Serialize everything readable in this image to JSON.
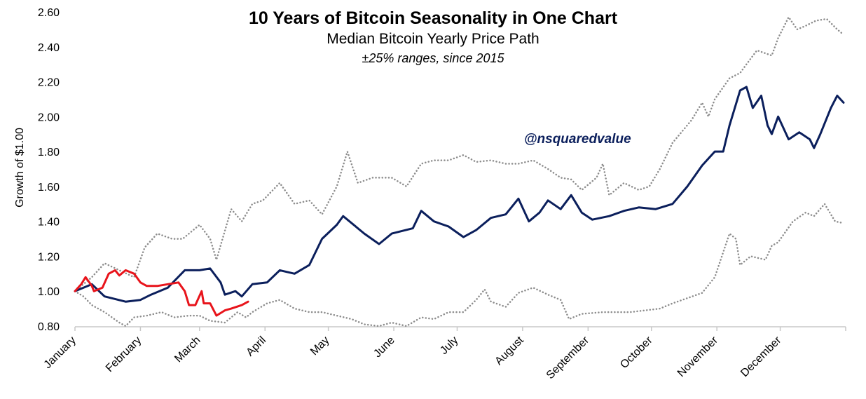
{
  "chart_data": {
    "type": "line",
    "title": "10 Years of Bitcoin Seasonality in One Chart",
    "subtitle": "Median Bitcoin Yearly Price Path",
    "subtitle2": "±25% ranges, since 2015",
    "annotation": "@nsquaredvalue",
    "ylabel": "Growth of $1.00",
    "xlabel": "",
    "ylim": [
      0.8,
      2.6
    ],
    "yticks": [
      "0.80",
      "1.00",
      "1.20",
      "1.40",
      "1.60",
      "1.80",
      "2.00",
      "2.20",
      "2.40",
      "2.60"
    ],
    "xticks": [
      "January",
      "February",
      "March",
      "April",
      "May",
      "June",
      "July",
      "August",
      "September",
      "October",
      "November",
      "December"
    ],
    "grid": false,
    "legend": "none",
    "series": [
      {
        "style": "solid",
        "color": "#0b1f5c",
        "points": [
          [
            "01-01",
            1.0
          ],
          [
            "01-09",
            1.04
          ],
          [
            "01-15",
            0.97
          ],
          [
            "01-25",
            0.94
          ],
          [
            "02-01",
            0.95
          ],
          [
            "02-06",
            0.98
          ],
          [
            "02-14",
            1.02
          ],
          [
            "02-22",
            1.12
          ],
          [
            "03-01",
            1.12
          ],
          [
            "03-06",
            1.13
          ],
          [
            "03-11",
            1.05
          ],
          [
            "03-13",
            0.98
          ],
          [
            "03-18",
            1.0
          ],
          [
            "03-21",
            0.97
          ],
          [
            "03-26",
            1.04
          ],
          [
            "04-02",
            1.05
          ],
          [
            "04-08",
            1.12
          ],
          [
            "04-15",
            1.1
          ],
          [
            "04-22",
            1.15
          ],
          [
            "04-28",
            1.3
          ],
          [
            "05-05",
            1.38
          ],
          [
            "05-08",
            1.43
          ],
          [
            "05-18",
            1.33
          ],
          [
            "05-25",
            1.27
          ],
          [
            "05-31",
            1.33
          ],
          [
            "06-10",
            1.36
          ],
          [
            "06-14",
            1.46
          ],
          [
            "06-20",
            1.4
          ],
          [
            "06-27",
            1.37
          ],
          [
            "07-04",
            1.31
          ],
          [
            "07-10",
            1.35
          ],
          [
            "07-17",
            1.42
          ],
          [
            "07-24",
            1.44
          ],
          [
            "07-30",
            1.53
          ],
          [
            "08-04",
            1.4
          ],
          [
            "08-09",
            1.45
          ],
          [
            "08-13",
            1.52
          ],
          [
            "08-19",
            1.47
          ],
          [
            "08-24",
            1.55
          ],
          [
            "08-29",
            1.45
          ],
          [
            "09-03",
            1.41
          ],
          [
            "09-11",
            1.43
          ],
          [
            "09-18",
            1.46
          ],
          [
            "09-25",
            1.48
          ],
          [
            "10-03",
            1.47
          ],
          [
            "10-11",
            1.5
          ],
          [
            "10-18",
            1.6
          ],
          [
            "10-25",
            1.72
          ],
          [
            "10-31",
            1.8
          ],
          [
            "11-04",
            1.8
          ],
          [
            "11-07",
            1.95
          ],
          [
            "11-12",
            2.15
          ],
          [
            "11-15",
            2.17
          ],
          [
            "11-18",
            2.05
          ],
          [
            "11-22",
            2.12
          ],
          [
            "11-25",
            1.95
          ],
          [
            "11-27",
            1.9
          ],
          [
            "11-30",
            2.0
          ],
          [
            "12-05",
            1.87
          ],
          [
            "12-10",
            1.91
          ],
          [
            "12-15",
            1.87
          ],
          [
            "12-17",
            1.82
          ],
          [
            "12-20",
            1.9
          ],
          [
            "12-25",
            2.05
          ],
          [
            "12-28",
            2.12
          ],
          [
            "12-31",
            2.08
          ]
        ]
      },
      {
        "style": "solid",
        "color": "#e8141b",
        "points": [
          [
            "01-01",
            1.0
          ],
          [
            "01-04",
            1.04
          ],
          [
            "01-06",
            1.08
          ],
          [
            "01-09",
            1.03
          ],
          [
            "01-10",
            1.0
          ],
          [
            "01-14",
            1.02
          ],
          [
            "01-17",
            1.1
          ],
          [
            "01-20",
            1.12
          ],
          [
            "01-22",
            1.09
          ],
          [
            "01-25",
            1.12
          ],
          [
            "01-29",
            1.1
          ],
          [
            "02-01",
            1.05
          ],
          [
            "02-04",
            1.03
          ],
          [
            "02-09",
            1.03
          ],
          [
            "02-14",
            1.04
          ],
          [
            "02-19",
            1.05
          ],
          [
            "02-22",
            1.0
          ],
          [
            "02-24",
            0.92
          ],
          [
            "02-27",
            0.92
          ],
          [
            "03-02",
            1.0
          ],
          [
            "03-03",
            0.93
          ],
          [
            "03-06",
            0.93
          ],
          [
            "03-09",
            0.86
          ],
          [
            "03-13",
            0.89
          ],
          [
            "03-16",
            0.9
          ],
          [
            "03-21",
            0.92
          ],
          [
            "03-24",
            0.94
          ]
        ]
      },
      {
        "style": "dotted",
        "color": "#8c8c8c",
        "points": [
          [
            "01-01",
            1.0
          ],
          [
            "01-09",
            1.08
          ],
          [
            "01-15",
            1.16
          ],
          [
            "01-22",
            1.12
          ],
          [
            "01-29",
            1.08
          ],
          [
            "02-03",
            1.25
          ],
          [
            "02-09",
            1.33
          ],
          [
            "02-16",
            1.3
          ],
          [
            "02-21",
            1.3
          ],
          [
            "03-01",
            1.38
          ],
          [
            "03-06",
            1.3
          ],
          [
            "03-09",
            1.18
          ],
          [
            "03-16",
            1.47
          ],
          [
            "03-21",
            1.4
          ],
          [
            "03-26",
            1.5
          ],
          [
            "03-31",
            1.52
          ],
          [
            "04-08",
            1.62
          ],
          [
            "04-15",
            1.5
          ],
          [
            "04-22",
            1.52
          ],
          [
            "04-28",
            1.44
          ],
          [
            "05-05",
            1.6
          ],
          [
            "05-10",
            1.8
          ],
          [
            "05-15",
            1.62
          ],
          [
            "05-22",
            1.65
          ],
          [
            "05-31",
            1.65
          ],
          [
            "06-07",
            1.6
          ],
          [
            "06-14",
            1.73
          ],
          [
            "06-20",
            1.75
          ],
          [
            "06-27",
            1.75
          ],
          [
            "07-04",
            1.78
          ],
          [
            "07-10",
            1.74
          ],
          [
            "07-17",
            1.75
          ],
          [
            "07-24",
            1.73
          ],
          [
            "07-30",
            1.73
          ],
          [
            "08-06",
            1.75
          ],
          [
            "08-13",
            1.7
          ],
          [
            "08-19",
            1.65
          ],
          [
            "08-24",
            1.64
          ],
          [
            "08-29",
            1.58
          ],
          [
            "09-05",
            1.65
          ],
          [
            "09-08",
            1.73
          ],
          [
            "09-11",
            1.55
          ],
          [
            "09-18",
            1.62
          ],
          [
            "09-25",
            1.58
          ],
          [
            "09-30",
            1.6
          ],
          [
            "10-05",
            1.7
          ],
          [
            "10-11",
            1.85
          ],
          [
            "10-20",
            1.98
          ],
          [
            "10-25",
            2.08
          ],
          [
            "10-28",
            2.0
          ],
          [
            "10-31",
            2.1
          ],
          [
            "11-07",
            2.22
          ],
          [
            "11-12",
            2.25
          ],
          [
            "11-15",
            2.3
          ],
          [
            "11-20",
            2.38
          ],
          [
            "11-27",
            2.35
          ],
          [
            "11-30",
            2.45
          ],
          [
            "12-05",
            2.57
          ],
          [
            "12-09",
            2.5
          ],
          [
            "12-13",
            2.52
          ],
          [
            "12-18",
            2.55
          ],
          [
            "12-23",
            2.56
          ],
          [
            "12-28",
            2.5
          ],
          [
            "12-31",
            2.47
          ]
        ]
      },
      {
        "style": "dotted",
        "color": "#8c8c8c",
        "points": [
          [
            "01-01",
            1.0
          ],
          [
            "01-05",
            0.97
          ],
          [
            "01-09",
            0.92
          ],
          [
            "01-15",
            0.88
          ],
          [
            "01-22",
            0.82
          ],
          [
            "01-25",
            0.8
          ],
          [
            "01-29",
            0.85
          ],
          [
            "02-04",
            0.86
          ],
          [
            "02-11",
            0.88
          ],
          [
            "02-17",
            0.85
          ],
          [
            "02-24",
            0.86
          ],
          [
            "03-01",
            0.86
          ],
          [
            "03-06",
            0.83
          ],
          [
            "03-13",
            0.82
          ],
          [
            "03-19",
            0.88
          ],
          [
            "03-23",
            0.85
          ],
          [
            "03-26",
            0.88
          ],
          [
            "04-02",
            0.93
          ],
          [
            "04-08",
            0.95
          ],
          [
            "04-15",
            0.9
          ],
          [
            "04-22",
            0.88
          ],
          [
            "04-28",
            0.88
          ],
          [
            "05-05",
            0.86
          ],
          [
            "05-12",
            0.84
          ],
          [
            "05-18",
            0.81
          ],
          [
            "05-25",
            0.8
          ],
          [
            "05-31",
            0.82
          ],
          [
            "06-07",
            0.8
          ],
          [
            "06-14",
            0.85
          ],
          [
            "06-20",
            0.84
          ],
          [
            "06-27",
            0.88
          ],
          [
            "07-04",
            0.88
          ],
          [
            "07-10",
            0.95
          ],
          [
            "07-14",
            1.01
          ],
          [
            "07-17",
            0.94
          ],
          [
            "07-24",
            0.91
          ],
          [
            "07-30",
            0.99
          ],
          [
            "08-06",
            1.02
          ],
          [
            "08-13",
            0.98
          ],
          [
            "08-19",
            0.95
          ],
          [
            "08-23",
            0.84
          ],
          [
            "08-29",
            0.87
          ],
          [
            "09-08",
            0.88
          ],
          [
            "09-21",
            0.88
          ],
          [
            "10-05",
            0.9
          ],
          [
            "10-11",
            0.93
          ],
          [
            "10-18",
            0.96
          ],
          [
            "10-25",
            0.99
          ],
          [
            "10-31",
            1.08
          ],
          [
            "11-07",
            1.33
          ],
          [
            "11-10",
            1.3
          ],
          [
            "11-12",
            1.15
          ],
          [
            "11-17",
            1.2
          ],
          [
            "11-24",
            1.18
          ],
          [
            "11-27",
            1.26
          ],
          [
            "11-30",
            1.28
          ],
          [
            "12-07",
            1.4
          ],
          [
            "12-13",
            1.45
          ],
          [
            "12-17",
            1.43
          ],
          [
            "12-22",
            1.5
          ],
          [
            "12-27",
            1.4
          ],
          [
            "12-31",
            1.39
          ]
        ]
      }
    ]
  }
}
